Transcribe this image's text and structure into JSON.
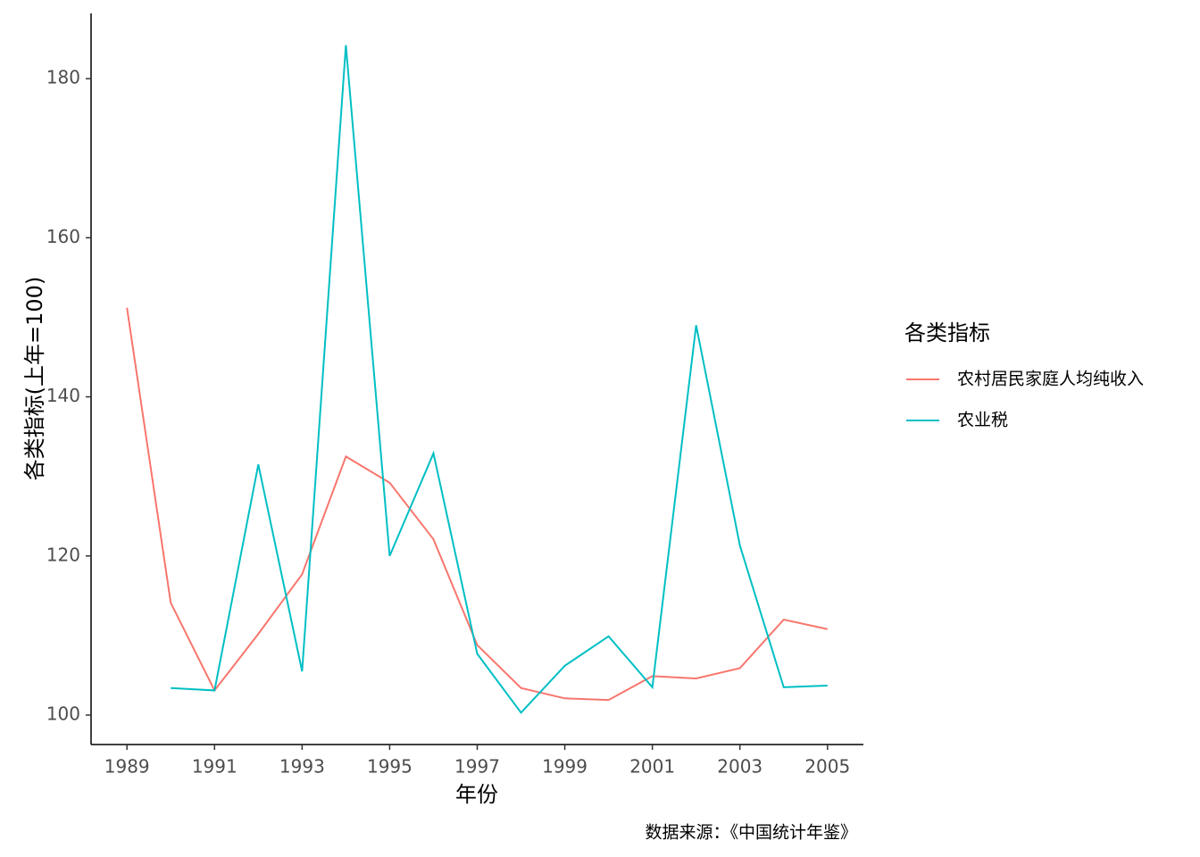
{
  "chart_data": {
    "type": "line",
    "x_label": "年份",
    "y_label": "各类指标(上年=100)",
    "caption": "数据来源：《中国统计年鉴》",
    "legend_title": "各类指标",
    "legend_position": "right",
    "x": [
      1989,
      1990,
      1991,
      1992,
      1993,
      1994,
      1995,
      1996,
      1997,
      1998,
      1999,
      2000,
      2001,
      2002,
      2003,
      2004,
      2005
    ],
    "series": [
      {
        "name": "农村居民家庭人均纯收入",
        "color": "#f8766d",
        "values": [
          151.2,
          114.1,
          103.1,
          110.2,
          117.7,
          132.5,
          129.2,
          122.1,
          108.8,
          103.4,
          102.1,
          101.9,
          104.9,
          104.6,
          105.9,
          112.0,
          110.8
        ]
      },
      {
        "name": "农业税",
        "color": "#00bfc4",
        "values": [
          null,
          103.4,
          103.1,
          131.5,
          105.5,
          184.2,
          120.0,
          132.9,
          107.7,
          100.3,
          106.2,
          109.9,
          103.5,
          149.0,
          121.3,
          103.5,
          103.7
        ]
      }
    ],
    "xlim": [
      1988.18,
      2005.82
    ],
    "ylim": [
      96.3,
      188.2
    ],
    "xticks": [
      1989,
      1991,
      1993,
      1995,
      1997,
      1999,
      2001,
      2003,
      2005
    ],
    "yticks": [
      100,
      120,
      140,
      160,
      180
    ],
    "grid": false
  }
}
